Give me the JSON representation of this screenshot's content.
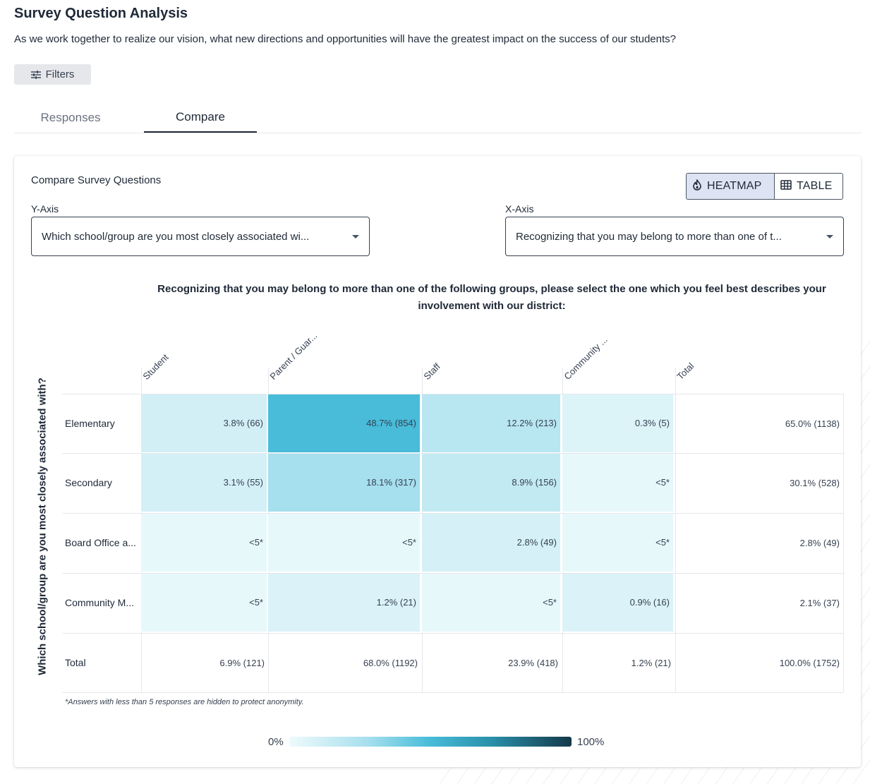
{
  "page": {
    "title": "Survey Question Analysis",
    "question": "As we work together to realize our vision, what new directions and opportunities will have the greatest impact on the success of our students?"
  },
  "filters": {
    "label": "Filters",
    "icon": "sliders-icon"
  },
  "tabs": [
    {
      "label": "Responses",
      "active": false
    },
    {
      "label": "Compare",
      "active": true
    }
  ],
  "compare": {
    "title": "Compare Survey Questions",
    "view_toggle": {
      "heatmap": {
        "label": "HEATMAP",
        "icon": "flame-icon",
        "active": true
      },
      "table": {
        "label": "TABLE",
        "icon": "grid-icon",
        "active": false
      }
    },
    "y_axis": {
      "label": "Y-Axis",
      "value": "Which school/group are you most closely associated wi..."
    },
    "x_axis": {
      "label": "X-Axis",
      "value": "Recognizing that you may belong to more than one of t..."
    }
  },
  "chart_data": {
    "type": "heatmap",
    "title": "Recognizing that you may belong to more than one of the following groups, please select the one which you feel best describes your involvement with our district:",
    "ylabel": "Which school/group are you most closely associated with?",
    "columns": [
      "Student",
      "Parent / Guar...",
      "Staff",
      "Community ...",
      "Total"
    ],
    "rows": [
      {
        "label": "Elementary",
        "cells": [
          "3.8% (66)",
          "48.7% (854)",
          "12.2% (213)",
          "0.3% (5)",
          "65.0% (1138)"
        ],
        "values": [
          3.8,
          48.7,
          12.2,
          0.3,
          65.0
        ]
      },
      {
        "label": "Secondary",
        "cells": [
          "3.1% (55)",
          "18.1% (317)",
          "8.9% (156)",
          "<5*",
          "30.1% (528)"
        ],
        "values": [
          3.1,
          18.1,
          8.9,
          0,
          30.1
        ]
      },
      {
        "label": "Board Office a...",
        "cells": [
          "<5*",
          "<5*",
          "2.8% (49)",
          "<5*",
          "2.8% (49)"
        ],
        "values": [
          0,
          0,
          2.8,
          0,
          2.8
        ]
      },
      {
        "label": "Community M...",
        "cells": [
          "<5*",
          "1.2% (21)",
          "<5*",
          "0.9% (16)",
          "2.1% (37)"
        ],
        "values": [
          0,
          1.2,
          0,
          0.9,
          2.1
        ]
      },
      {
        "label": "Total",
        "cells": [
          "6.9% (121)",
          "68.0% (1192)",
          "23.9% (418)",
          "1.2% (21)",
          "100.0% (1752)"
        ],
        "values": [
          6.9,
          68.0,
          23.9,
          1.2,
          100.0
        ]
      }
    ],
    "footnote": "*Answers with less than 5 responses are hidden to protect anonymity.",
    "scale": {
      "min_label": "0%",
      "max_label": "100%",
      "colors": [
        "#eefafc",
        "#47bcd9",
        "#14394a"
      ]
    }
  }
}
